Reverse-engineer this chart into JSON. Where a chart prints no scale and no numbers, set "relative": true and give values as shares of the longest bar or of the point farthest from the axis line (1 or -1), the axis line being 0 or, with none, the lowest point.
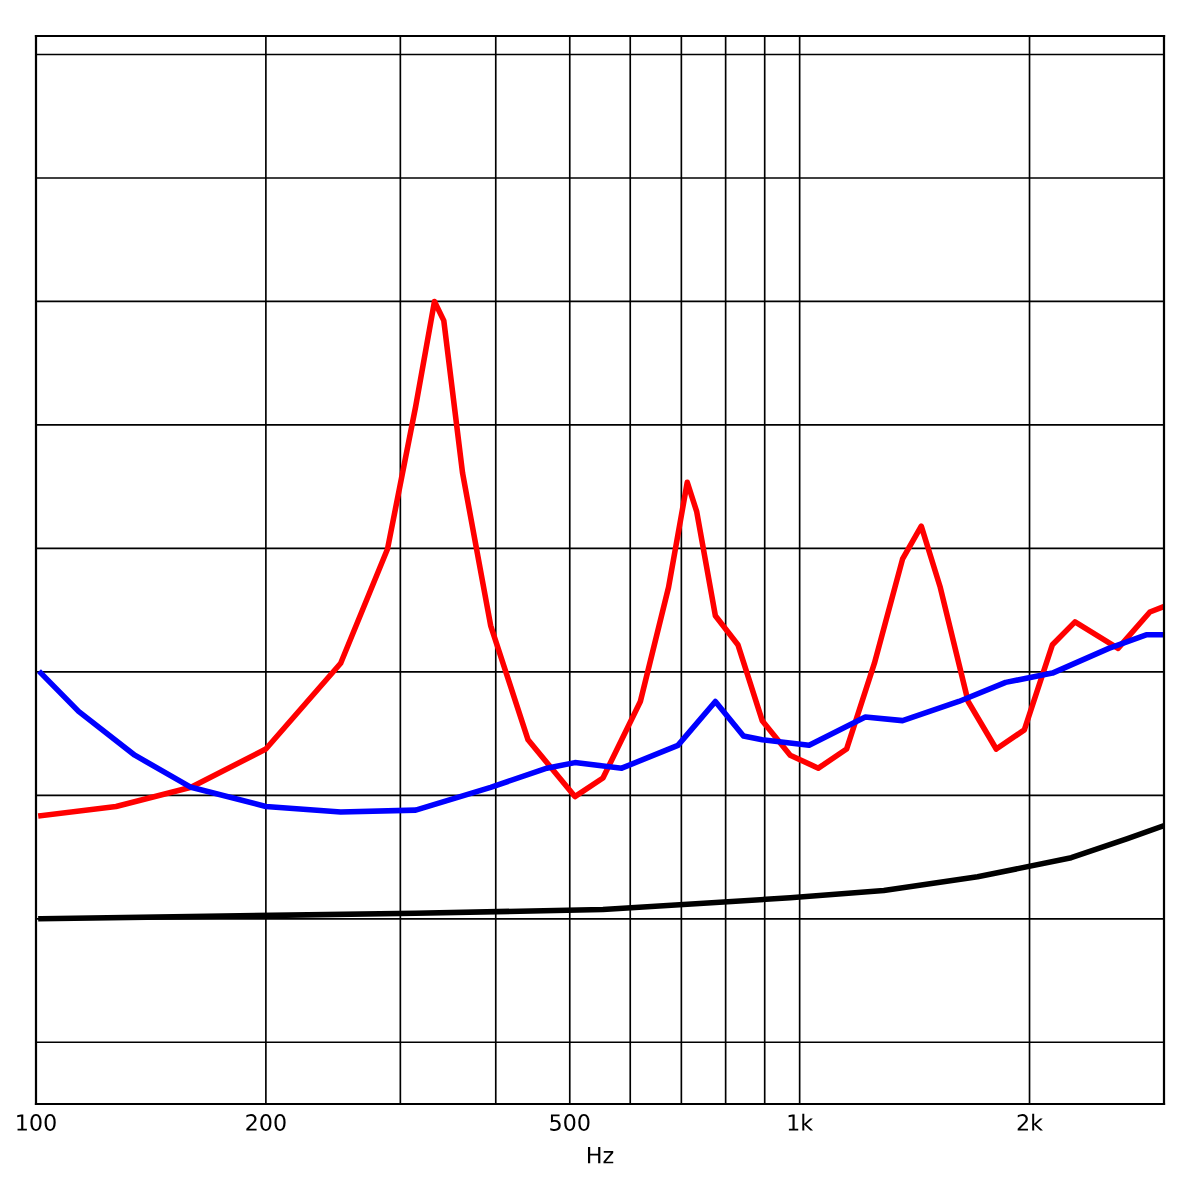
{
  "chart_data": {
    "type": "line",
    "relative": true,
    "xlabel": "Hz",
    "log": "x",
    "xlim": [
      100,
      3000
    ],
    "xticks": [
      100,
      200,
      500,
      {
        "value": 1000,
        "label": "1k"
      },
      {
        "value": 2000,
        "label": "2k"
      }
    ],
    "grid": true,
    "tick_labels": "x",
    "line_style": "solid",
    "marker": "none",
    "series": [
      {
        "color": "#ff0000",
        "x": [
          101.5,
          127.3,
          159.6,
          200,
          250.6,
          288.6,
          314.2,
          332.5,
          342,
          361.9,
          393.9,
          440.9,
          507.8,
          552.6,
          618.6,
          673.5,
          712.6,
          733,
          775.6,
          830.1,
          893.3,
          971.9,
          1058,
          1152,
          1253,
          1364,
          1443,
          1528,
          1662,
          1809,
          1969,
          2143,
          2294,
          2612,
          2875,
          3000
        ],
        "values": [
          0.167,
          0.182,
          0.213,
          0.275,
          0.414,
          0.599,
          0.83,
          1,
          0.969,
          0.722,
          0.475,
          0.29,
          0.198,
          0.228,
          0.352,
          0.537,
          0.707,
          0.66,
          0.491,
          0.444,
          0.321,
          0.265,
          0.244,
          0.275,
          0.414,
          0.583,
          0.636,
          0.537,
          0.352,
          0.275,
          0.306,
          0.444,
          0.481,
          0.438,
          0.497,
          0.506
        ]
      },
      {
        "color": "#0000ff",
        "x": [
          101.5,
          113.7,
          134.7,
          159.6,
          200,
          250.6,
          314.2,
          393.9,
          466.7,
          507.8,
          584.8,
          692.8,
          775.6,
          844.2,
          893.3,
          1029,
          1219,
          1364,
          1616,
          1861,
          2143,
          2540,
          2843,
          3000
        ],
        "values": [
          0.398,
          0.336,
          0.265,
          0.213,
          0.182,
          0.173,
          0.176,
          0.213,
          0.244,
          0.253,
          0.244,
          0.281,
          0.352,
          0.296,
          0.29,
          0.281,
          0.327,
          0.321,
          0.352,
          0.383,
          0.398,
          0.438,
          0.46,
          0.46
        ]
      },
      {
        "color": "#000000",
        "x": [
          101.5,
          314.2,
          552.6,
          971.9,
          1289,
          1710,
          2268,
          2687,
          3000
        ],
        "values": [
          0,
          0.009,
          0.015,
          0.034,
          0.046,
          0.068,
          0.099,
          0.13,
          0.151
        ]
      }
    ]
  }
}
